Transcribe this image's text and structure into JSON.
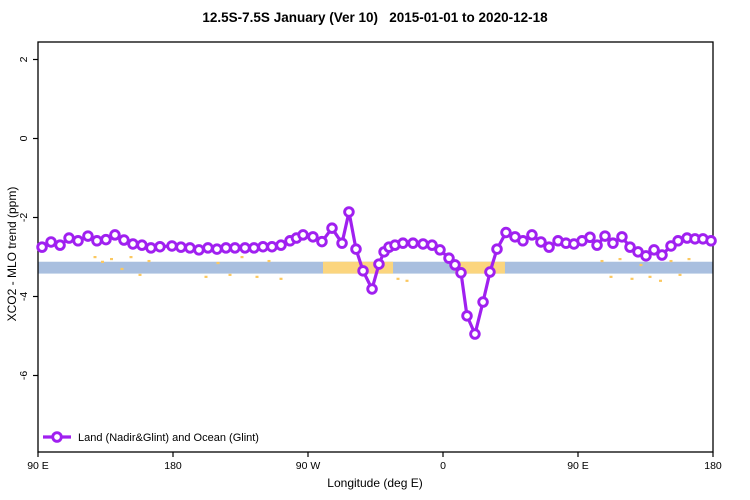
{
  "chart_data": {
    "type": "line",
    "title": "12.5S-7.5S January (Ver 10)   2015-01-01 to 2020-12-18",
    "xlabel": "Longitude (deg E)",
    "ylabel": "XCO2 - MLO trend (ppm)",
    "x_axis_note": "Longitude axis starts at 90E and wraps eastward: 90E, 180, 90W, 0, 90E, 180 (stored as continuous degrees 90-540)",
    "xlim_continuous_deg": [
      90,
      540
    ],
    "ylim": [
      -7.9,
      2.45
    ],
    "grid": false,
    "legend_position": "bottom-left inside plot",
    "x_ticks": [
      {
        "label": "90 E",
        "deg": 90
      },
      {
        "label": "180",
        "deg": 180
      },
      {
        "label": "90 W",
        "deg": 270
      },
      {
        "label": "0",
        "deg": 360
      },
      {
        "label": "90 E",
        "deg": 450
      },
      {
        "label": "180",
        "deg": 540
      }
    ],
    "y_ticks": [
      {
        "label": "2",
        "value": 2
      },
      {
        "label": "0",
        "value": 0
      },
      {
        "label": "-2",
        "value": -2
      },
      {
        "label": "-4",
        "value": -4
      },
      {
        "label": "-6",
        "value": -6
      }
    ],
    "series": [
      {
        "name": "Land (Nadir&Glint) and Ocean (Glint)",
        "color": "#A020F0",
        "marker": "open-circle",
        "points": [
          [
            92.7,
            -2.75
          ],
          [
            98.7,
            -2.62
          ],
          [
            104.7,
            -2.7
          ],
          [
            110.7,
            -2.52
          ],
          [
            116.7,
            -2.59
          ],
          [
            123.3,
            -2.47
          ],
          [
            129.3,
            -2.59
          ],
          [
            135.3,
            -2.56
          ],
          [
            141.3,
            -2.44
          ],
          [
            147.3,
            -2.57
          ],
          [
            153.3,
            -2.67
          ],
          [
            159.3,
            -2.7
          ],
          [
            165.3,
            -2.77
          ],
          [
            171.3,
            -2.74
          ],
          [
            179.3,
            -2.72
          ],
          [
            185.3,
            -2.75
          ],
          [
            191.3,
            -2.77
          ],
          [
            197.3,
            -2.82
          ],
          [
            203.3,
            -2.77
          ],
          [
            209.3,
            -2.8
          ],
          [
            215.3,
            -2.77
          ],
          [
            221.3,
            -2.77
          ],
          [
            228,
            -2.77
          ],
          [
            234,
            -2.77
          ],
          [
            240,
            -2.74
          ],
          [
            246,
            -2.74
          ],
          [
            252,
            -2.7
          ],
          [
            258,
            -2.59
          ],
          [
            262.3,
            -2.52
          ],
          [
            266.7,
            -2.44
          ],
          [
            273.3,
            -2.49
          ],
          [
            279.3,
            -2.61
          ],
          [
            286,
            -2.27
          ],
          [
            292.7,
            -2.65
          ],
          [
            297.3,
            -1.86
          ],
          [
            302,
            -2.8
          ],
          [
            306.7,
            -3.35
          ],
          [
            312.7,
            -3.81
          ],
          [
            317.3,
            -3.18
          ],
          [
            320.7,
            -2.87
          ],
          [
            324,
            -2.75
          ],
          [
            328,
            -2.7
          ],
          [
            333.3,
            -2.65
          ],
          [
            340,
            -2.65
          ],
          [
            346.7,
            -2.67
          ],
          [
            352.7,
            -2.7
          ],
          [
            358,
            -2.82
          ],
          [
            364,
            -3.03
          ],
          [
            368,
            -3.2
          ],
          [
            372,
            -3.4
          ],
          [
            376,
            -4.49
          ],
          [
            381.3,
            -4.95
          ],
          [
            386.7,
            -4.14
          ],
          [
            391.3,
            -3.38
          ],
          [
            396,
            -2.8
          ],
          [
            402,
            -2.38
          ],
          [
            408,
            -2.49
          ],
          [
            413.3,
            -2.59
          ],
          [
            419.3,
            -2.44
          ],
          [
            425.3,
            -2.62
          ],
          [
            430.7,
            -2.75
          ],
          [
            436.7,
            -2.59
          ],
          [
            442,
            -2.65
          ],
          [
            447.3,
            -2.67
          ],
          [
            452.7,
            -2.59
          ],
          [
            458,
            -2.5
          ],
          [
            462.7,
            -2.7
          ],
          [
            468,
            -2.47
          ],
          [
            473.3,
            -2.65
          ],
          [
            479.3,
            -2.49
          ],
          [
            484.7,
            -2.75
          ],
          [
            490,
            -2.87
          ],
          [
            495.3,
            -2.97
          ],
          [
            500.7,
            -2.82
          ],
          [
            506,
            -2.95
          ],
          [
            512,
            -2.72
          ],
          [
            516.7,
            -2.59
          ],
          [
            522.7,
            -2.52
          ],
          [
            528,
            -2.54
          ],
          [
            533.3,
            -2.54
          ],
          [
            538.7,
            -2.59
          ]
        ]
      }
    ],
    "reference_band": {
      "ppm_range": [
        -3.42,
        -3.12
      ],
      "ocean_color": "#A9BFDF",
      "land_color": "#FBD57E",
      "extent_deg": [
        90,
        540
      ],
      "land_segments_deg": [
        [
          280,
          326.7
        ],
        [
          368,
          401.3
        ]
      ]
    },
    "map_speckles": {
      "color": "#FBC860",
      "points": [
        [
          128,
          -3.0
        ],
        [
          133,
          -3.12
        ],
        [
          139,
          -3.05
        ],
        [
          146,
          -3.3
        ],
        [
          152,
          -3.0
        ],
        [
          158,
          -3.45
        ],
        [
          164,
          -3.1
        ],
        [
          202,
          -3.5
        ],
        [
          210,
          -3.15
        ],
        [
          218,
          -3.45
        ],
        [
          226,
          -3.0
        ],
        [
          236,
          -3.5
        ],
        [
          244,
          -3.1
        ],
        [
          252,
          -3.55
        ],
        [
          330,
          -3.55
        ],
        [
          336,
          -3.6
        ],
        [
          466,
          -3.1
        ],
        [
          472,
          -3.5
        ],
        [
          478,
          -3.05
        ],
        [
          486,
          -3.55
        ],
        [
          492,
          -3.2
        ],
        [
          498,
          -3.5
        ],
        [
          505,
          -3.6
        ],
        [
          512,
          -3.1
        ],
        [
          518,
          -3.45
        ],
        [
          524,
          -3.05
        ]
      ]
    }
  },
  "legend": {
    "label": "Land (Nadir&Glint) and Ocean (Glint)"
  },
  "colors": {
    "line": "#A020F0",
    "band_ocean": "#A9BFDF",
    "band_land": "#FBD57E",
    "axis": "#000000",
    "background": "#ffffff"
  }
}
